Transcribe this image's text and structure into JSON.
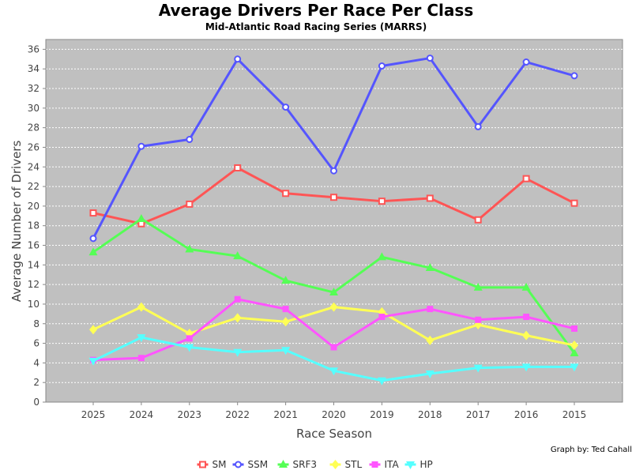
{
  "chart_data": {
    "type": "line",
    "title": "Average Drivers Per Race Per Class",
    "subtitle": "Mid-Atlantic Road Racing Series (MARRS)",
    "xlabel": "Race Season",
    "ylabel": "Average Number of Drivers",
    "credit": "Graph by: Ted Cahall",
    "ylim": [
      0,
      37
    ],
    "yticks": [
      0,
      2,
      4,
      6,
      8,
      10,
      12,
      14,
      16,
      18,
      20,
      22,
      24,
      26,
      28,
      30,
      32,
      34,
      36
    ],
    "categories": [
      "2025",
      "2024",
      "2023",
      "2022",
      "2021",
      "2020",
      "2019",
      "2018",
      "2017",
      "2016",
      "2015"
    ],
    "grid": true,
    "legend_position": "bottom",
    "background_color": "#c0c0c0",
    "series": [
      {
        "name": "SM",
        "color": "#ff5555",
        "marker": "square",
        "values": [
          19.3,
          18.2,
          20.2,
          23.9,
          21.3,
          20.9,
          20.5,
          20.8,
          18.6,
          22.8,
          20.3
        ]
      },
      {
        "name": "SSM",
        "color": "#5555ff",
        "marker": "circle",
        "values": [
          16.7,
          26.1,
          26.8,
          35.0,
          30.1,
          23.6,
          34.3,
          35.1,
          28.1,
          34.7,
          33.3
        ]
      },
      {
        "name": "SRF3",
        "color": "#55ff55",
        "marker": "triangle-up",
        "values": [
          15.3,
          18.7,
          15.6,
          14.9,
          12.4,
          11.2,
          14.8,
          13.7,
          11.7,
          11.7,
          5.0
        ]
      },
      {
        "name": "STL",
        "color": "#ffff55",
        "marker": "diamond",
        "values": [
          7.4,
          9.7,
          7.0,
          8.6,
          8.2,
          9.7,
          9.2,
          6.3,
          7.9,
          6.8,
          5.8
        ]
      },
      {
        "name": "ITA",
        "color": "#ff55ff",
        "marker": "square-filled",
        "values": [
          4.3,
          4.5,
          6.5,
          10.5,
          9.5,
          5.6,
          8.7,
          9.5,
          8.4,
          8.7,
          7.5
        ]
      },
      {
        "name": "HP",
        "color": "#55ffff",
        "marker": "triangle-down",
        "values": [
          4.2,
          6.6,
          5.6,
          5.1,
          5.3,
          3.2,
          2.2,
          2.9,
          3.5,
          3.6,
          3.6
        ]
      }
    ]
  }
}
